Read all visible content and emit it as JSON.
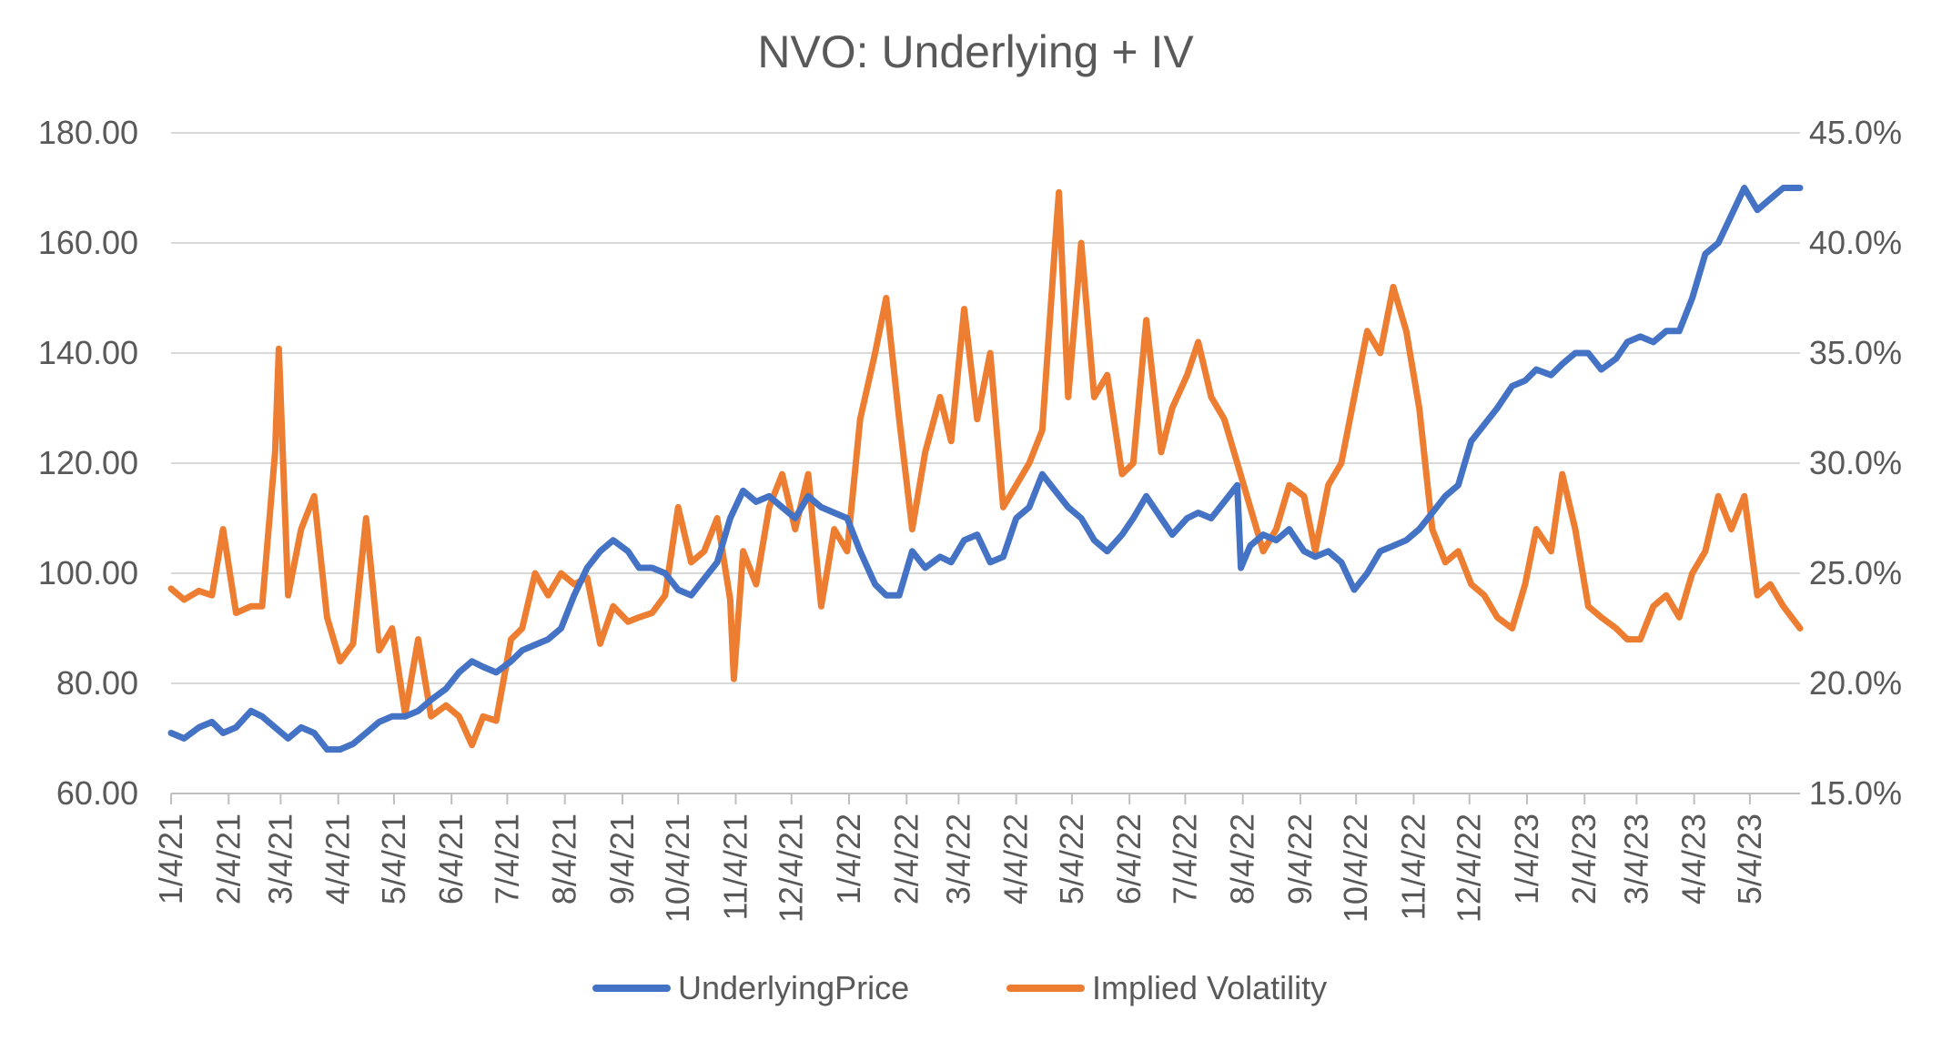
{
  "chart_data": {
    "type": "line",
    "title": "NVO: Underlying + IV",
    "x_ticks": [
      "1/4/21",
      "2/4/21",
      "3/4/21",
      "4/4/21",
      "5/4/21",
      "6/4/21",
      "7/4/21",
      "8/4/21",
      "9/4/21",
      "10/4/21",
      "11/4/21",
      "12/4/21",
      "1/4/22",
      "2/4/22",
      "3/4/22",
      "4/4/22",
      "5/4/22",
      "6/4/22",
      "7/4/22",
      "8/4/22",
      "9/4/22",
      "10/4/22",
      "11/4/22",
      "12/4/22",
      "1/4/23",
      "2/4/23",
      "3/4/23",
      "4/4/23",
      "5/4/23"
    ],
    "x_range": [
      "1/4/21",
      "5/31/23"
    ],
    "y_left": {
      "min": 60,
      "max": 180,
      "step": 20,
      "tick_labels": [
        "60.00",
        "80.00",
        "100.00",
        "120.00",
        "140.00",
        "160.00",
        "180.00"
      ]
    },
    "y_right": {
      "min": 15,
      "max": 45,
      "step": 5,
      "tick_labels": [
        "15.0%",
        "20.0%",
        "25.0%",
        "30.0%",
        "35.0%",
        "40.0%",
        "45.0%"
      ]
    },
    "grid": "horizontal",
    "legend_position": "bottom",
    "series": [
      {
        "name": "UnderlyingPrice",
        "axis": "left",
        "color": "#4472C4",
        "points": [
          [
            "1/4/21",
            71
          ],
          [
            "1/11/21",
            70
          ],
          [
            "1/19/21",
            72
          ],
          [
            "1/26/21",
            73
          ],
          [
            "2/1/21",
            71
          ],
          [
            "2/8/21",
            72
          ],
          [
            "2/16/21",
            75
          ],
          [
            "2/22/21",
            74
          ],
          [
            "3/1/21",
            72
          ],
          [
            "3/8/21",
            70
          ],
          [
            "3/15/21",
            72
          ],
          [
            "3/22/21",
            71
          ],
          [
            "3/29/21",
            68
          ],
          [
            "4/5/21",
            68
          ],
          [
            "4/12/21",
            69
          ],
          [
            "4/19/21",
            71
          ],
          [
            "4/26/21",
            73
          ],
          [
            "5/3/21",
            74
          ],
          [
            "5/10/21",
            74
          ],
          [
            "5/17/21",
            75
          ],
          [
            "5/24/21",
            77
          ],
          [
            "6/1/21",
            79
          ],
          [
            "6/8/21",
            82
          ],
          [
            "6/15/21",
            84
          ],
          [
            "6/21/21",
            83
          ],
          [
            "6/28/21",
            82
          ],
          [
            "7/6/21",
            84
          ],
          [
            "7/12/21",
            86
          ],
          [
            "7/19/21",
            87
          ],
          [
            "7/26/21",
            88
          ],
          [
            "8/2/21",
            90
          ],
          [
            "8/9/21",
            96
          ],
          [
            "8/16/21",
            101
          ],
          [
            "8/23/21",
            104
          ],
          [
            "8/30/21",
            106
          ],
          [
            "9/7/21",
            104
          ],
          [
            "9/13/21",
            101
          ],
          [
            "9/20/21",
            101
          ],
          [
            "9/27/21",
            100
          ],
          [
            "10/4/21",
            97
          ],
          [
            "10/11/21",
            96
          ],
          [
            "10/18/21",
            99
          ],
          [
            "10/25/21",
            102
          ],
          [
            "11/1/21",
            110
          ],
          [
            "11/8/21",
            115
          ],
          [
            "11/15/21",
            113
          ],
          [
            "11/22/21",
            114
          ],
          [
            "11/29/21",
            112
          ],
          [
            "12/6/21",
            110
          ],
          [
            "12/13/21",
            114
          ],
          [
            "12/20/21",
            112
          ],
          [
            "12/27/21",
            111
          ],
          [
            "1/3/22",
            110
          ],
          [
            "1/10/22",
            104
          ],
          [
            "1/18/22",
            98
          ],
          [
            "1/24/22",
            96
          ],
          [
            "1/31/22",
            96
          ],
          [
            "2/7/22",
            104
          ],
          [
            "2/14/22",
            101
          ],
          [
            "2/22/22",
            103
          ],
          [
            "2/28/22",
            102
          ],
          [
            "3/7/22",
            106
          ],
          [
            "3/14/22",
            107
          ],
          [
            "3/21/22",
            102
          ],
          [
            "3/28/22",
            103
          ],
          [
            "4/4/22",
            110
          ],
          [
            "4/11/22",
            112
          ],
          [
            "4/18/22",
            118
          ],
          [
            "4/25/22",
            115
          ],
          [
            "5/2/22",
            112
          ],
          [
            "5/9/22",
            110
          ],
          [
            "5/16/22",
            106
          ],
          [
            "5/23/22",
            104
          ],
          [
            "5/31/22",
            107
          ],
          [
            "6/6/22",
            110
          ],
          [
            "6/13/22",
            114
          ],
          [
            "6/21/22",
            110
          ],
          [
            "6/27/22",
            107
          ],
          [
            "7/5/22",
            110
          ],
          [
            "7/11/22",
            111
          ],
          [
            "7/18/22",
            110
          ],
          [
            "7/25/22",
            113
          ],
          [
            "8/1/22",
            116
          ],
          [
            "8/3/22",
            101
          ],
          [
            "8/8/22",
            105
          ],
          [
            "8/15/22",
            107
          ],
          [
            "8/22/22",
            106
          ],
          [
            "8/29/22",
            108
          ],
          [
            "9/6/22",
            104
          ],
          [
            "9/12/22",
            103
          ],
          [
            "9/19/22",
            104
          ],
          [
            "9/26/22",
            102
          ],
          [
            "10/3/22",
            97
          ],
          [
            "10/10/22",
            100
          ],
          [
            "10/17/22",
            104
          ],
          [
            "10/24/22",
            105
          ],
          [
            "10/31/22",
            106
          ],
          [
            "11/7/22",
            108
          ],
          [
            "11/14/22",
            111
          ],
          [
            "11/21/22",
            114
          ],
          [
            "11/28/22",
            116
          ],
          [
            "12/5/22",
            124
          ],
          [
            "12/12/22",
            127
          ],
          [
            "12/19/22",
            130
          ],
          [
            "12/27/22",
            134
          ],
          [
            "1/3/23",
            135
          ],
          [
            "1/9/23",
            137
          ],
          [
            "1/17/23",
            136
          ],
          [
            "1/23/23",
            138
          ],
          [
            "1/30/23",
            140
          ],
          [
            "2/6/23",
            140
          ],
          [
            "2/13/23",
            137
          ],
          [
            "2/21/23",
            139
          ],
          [
            "2/27/23",
            142
          ],
          [
            "3/6/23",
            143
          ],
          [
            "3/13/23",
            142
          ],
          [
            "3/20/23",
            144
          ],
          [
            "3/27/23",
            144
          ],
          [
            "4/3/23",
            150
          ],
          [
            "4/10/23",
            158
          ],
          [
            "4/17/23",
            160
          ],
          [
            "4/24/23",
            165
          ],
          [
            "5/1/23",
            170
          ],
          [
            "5/8/23",
            166
          ],
          [
            "5/15/23",
            168
          ],
          [
            "5/22/23",
            170
          ],
          [
            "5/31/23",
            170
          ]
        ]
      },
      {
        "name": "Implied Volatility",
        "axis": "right",
        "color": "#ED7D31",
        "points": [
          [
            "1/4/21",
            24.3
          ],
          [
            "1/11/21",
            23.8
          ],
          [
            "1/19/21",
            24.2
          ],
          [
            "1/26/21",
            24.0
          ],
          [
            "2/1/21",
            27.0
          ],
          [
            "2/8/21",
            23.2
          ],
          [
            "2/16/21",
            23.5
          ],
          [
            "2/22/21",
            23.5
          ],
          [
            "3/1/21",
            30.5
          ],
          [
            "3/3/21",
            35.2
          ],
          [
            "3/8/21",
            24.0
          ],
          [
            "3/15/21",
            27.0
          ],
          [
            "3/22/21",
            28.5
          ],
          [
            "3/29/21",
            23.0
          ],
          [
            "4/5/21",
            21.0
          ],
          [
            "4/12/21",
            21.8
          ],
          [
            "4/19/21",
            27.5
          ],
          [
            "4/26/21",
            21.5
          ],
          [
            "5/3/21",
            22.5
          ],
          [
            "5/10/21",
            18.6
          ],
          [
            "5/17/21",
            22.0
          ],
          [
            "5/24/21",
            18.5
          ],
          [
            "6/1/21",
            19.0
          ],
          [
            "6/8/21",
            18.5
          ],
          [
            "6/15/21",
            17.2
          ],
          [
            "6/21/21",
            18.5
          ],
          [
            "6/28/21",
            18.3
          ],
          [
            "7/6/21",
            22.0
          ],
          [
            "7/12/21",
            22.5
          ],
          [
            "7/19/21",
            25.0
          ],
          [
            "7/26/21",
            24.0
          ],
          [
            "8/2/21",
            25.0
          ],
          [
            "8/9/21",
            24.5
          ],
          [
            "8/16/21",
            24.8
          ],
          [
            "8/23/21",
            21.8
          ],
          [
            "8/30/21",
            23.5
          ],
          [
            "9/7/21",
            22.8
          ],
          [
            "9/13/21",
            23.0
          ],
          [
            "9/20/21",
            23.2
          ],
          [
            "9/27/21",
            24.0
          ],
          [
            "10/4/21",
            28.0
          ],
          [
            "10/11/21",
            25.5
          ],
          [
            "10/18/21",
            26.0
          ],
          [
            "10/25/21",
            27.5
          ],
          [
            "11/1/21",
            23.8
          ],
          [
            "11/3/21",
            20.2
          ],
          [
            "11/8/21",
            26.0
          ],
          [
            "11/15/21",
            24.5
          ],
          [
            "11/22/21",
            28.0
          ],
          [
            "11/29/21",
            29.5
          ],
          [
            "12/6/21",
            27.0
          ],
          [
            "12/13/21",
            29.5
          ],
          [
            "12/20/21",
            23.5
          ],
          [
            "12/27/21",
            27.0
          ],
          [
            "1/3/22",
            26.0
          ],
          [
            "1/10/22",
            32.0
          ],
          [
            "1/18/22",
            35.0
          ],
          [
            "1/24/22",
            37.5
          ],
          [
            "1/31/22",
            32.0
          ],
          [
            "2/7/22",
            27.0
          ],
          [
            "2/14/22",
            30.5
          ],
          [
            "2/22/22",
            33.0
          ],
          [
            "2/28/22",
            31.0
          ],
          [
            "3/7/22",
            37.0
          ],
          [
            "3/14/22",
            32.0
          ],
          [
            "3/21/22",
            35.0
          ],
          [
            "3/28/22",
            28.0
          ],
          [
            "4/4/22",
            29.0
          ],
          [
            "4/11/22",
            30.0
          ],
          [
            "4/18/22",
            31.5
          ],
          [
            "4/25/22",
            40.0
          ],
          [
            "4/27/22",
            42.3
          ],
          [
            "5/2/22",
            33.0
          ],
          [
            "5/9/22",
            40.0
          ],
          [
            "5/16/22",
            33.0
          ],
          [
            "5/23/22",
            34.0
          ],
          [
            "5/31/22",
            29.5
          ],
          [
            "6/6/22",
            30.0
          ],
          [
            "6/13/22",
            36.5
          ],
          [
            "6/21/22",
            30.5
          ],
          [
            "6/27/22",
            32.5
          ],
          [
            "7/5/22",
            34.0
          ],
          [
            "7/11/22",
            35.5
          ],
          [
            "7/18/22",
            33.0
          ],
          [
            "7/25/22",
            32.0
          ],
          [
            "8/1/22",
            30.0
          ],
          [
            "8/8/22",
            28.0
          ],
          [
            "8/15/22",
            26.0
          ],
          [
            "8/22/22",
            27.0
          ],
          [
            "8/29/22",
            29.0
          ],
          [
            "9/6/22",
            28.5
          ],
          [
            "9/12/22",
            26.0
          ],
          [
            "9/19/22",
            29.0
          ],
          [
            "9/26/22",
            30.0
          ],
          [
            "10/3/22",
            33.0
          ],
          [
            "10/10/22",
            36.0
          ],
          [
            "10/17/22",
            35.0
          ],
          [
            "10/24/22",
            38.0
          ],
          [
            "10/31/22",
            36.0
          ],
          [
            "11/7/22",
            32.5
          ],
          [
            "11/14/22",
            27.0
          ],
          [
            "11/21/22",
            25.5
          ],
          [
            "11/28/22",
            26.0
          ],
          [
            "12/5/22",
            24.5
          ],
          [
            "12/12/22",
            24.0
          ],
          [
            "12/19/22",
            23.0
          ],
          [
            "12/27/22",
            22.5
          ],
          [
            "1/3/23",
            24.5
          ],
          [
            "1/9/23",
            27.0
          ],
          [
            "1/17/23",
            26.0
          ],
          [
            "1/23/23",
            29.5
          ],
          [
            "1/30/23",
            27.0
          ],
          [
            "2/6/23",
            23.5
          ],
          [
            "2/13/23",
            23.0
          ],
          [
            "2/21/23",
            22.5
          ],
          [
            "2/27/23",
            22.0
          ],
          [
            "3/6/23",
            22.0
          ],
          [
            "3/13/23",
            23.5
          ],
          [
            "3/20/23",
            24.0
          ],
          [
            "3/27/23",
            23.0
          ],
          [
            "4/3/23",
            25.0
          ],
          [
            "4/10/23",
            26.0
          ],
          [
            "4/17/23",
            28.5
          ],
          [
            "4/24/23",
            27.0
          ],
          [
            "5/1/23",
            28.5
          ],
          [
            "5/8/23",
            24.0
          ],
          [
            "5/15/23",
            24.5
          ],
          [
            "5/22/23",
            23.5
          ],
          [
            "5/31/23",
            22.5
          ]
        ]
      }
    ]
  }
}
